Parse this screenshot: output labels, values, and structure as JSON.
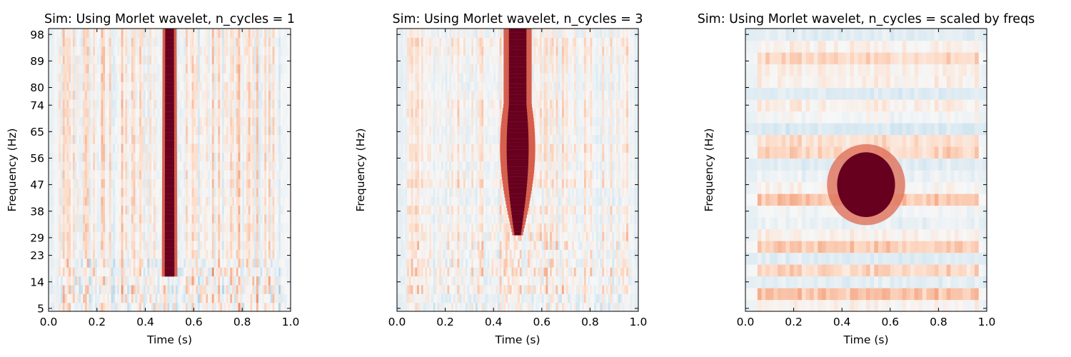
{
  "chart_data": [
    {
      "type": "heatmap",
      "title": "Sim: Using Morlet wavelet, n_cycles = 1",
      "xlabel": "Time (s)",
      "ylabel": "Frequency (Hz)",
      "xlim": [
        0.0,
        1.0
      ],
      "ylim": [
        4,
        100
      ],
      "x_ticks": [
        "0.0",
        "0.2",
        "0.4",
        "0.6",
        "0.8",
        "1.0"
      ],
      "y_ticks": [
        "5",
        "14",
        "23",
        "29",
        "38",
        "47",
        "56",
        "65",
        "74",
        "80",
        "89",
        "98"
      ],
      "colormap": "RdBu_r",
      "blob": {
        "center_time": 0.5,
        "time_halfwidth": 0.02,
        "freq_min": 16,
        "freq_max": 100
      }
    },
    {
      "type": "heatmap",
      "title": "Sim: Using Morlet wavelet, n_cycles = 3",
      "xlabel": "Time (s)",
      "ylabel": "Frequency (Hz)",
      "xlim": [
        0.0,
        1.0
      ],
      "ylim": [
        4,
        100
      ],
      "x_ticks": [
        "0.0",
        "0.2",
        "0.4",
        "0.6",
        "0.8",
        "1.0"
      ],
      "y_ticks": [],
      "colormap": "RdBu_r",
      "blob": {
        "center_time": 0.5,
        "time_halfwidth": 0.035,
        "freq_min": 30,
        "freq_max": 100
      }
    },
    {
      "type": "heatmap",
      "title": "Sim: Using Morlet wavelet, n_cycles = scaled by freqs",
      "xlabel": "Time (s)",
      "ylabel": "Frequency (Hz)",
      "xlim": [
        0.0,
        1.0
      ],
      "ylim": [
        4,
        100
      ],
      "x_ticks": [
        "0.0",
        "0.2",
        "0.4",
        "0.6",
        "0.8",
        "1.0"
      ],
      "y_ticks": [],
      "colormap": "RdBu_r",
      "blob": {
        "center_time": 0.5,
        "time_halfwidth": 0.12,
        "freq_min": 36,
        "freq_max": 58
      }
    }
  ]
}
